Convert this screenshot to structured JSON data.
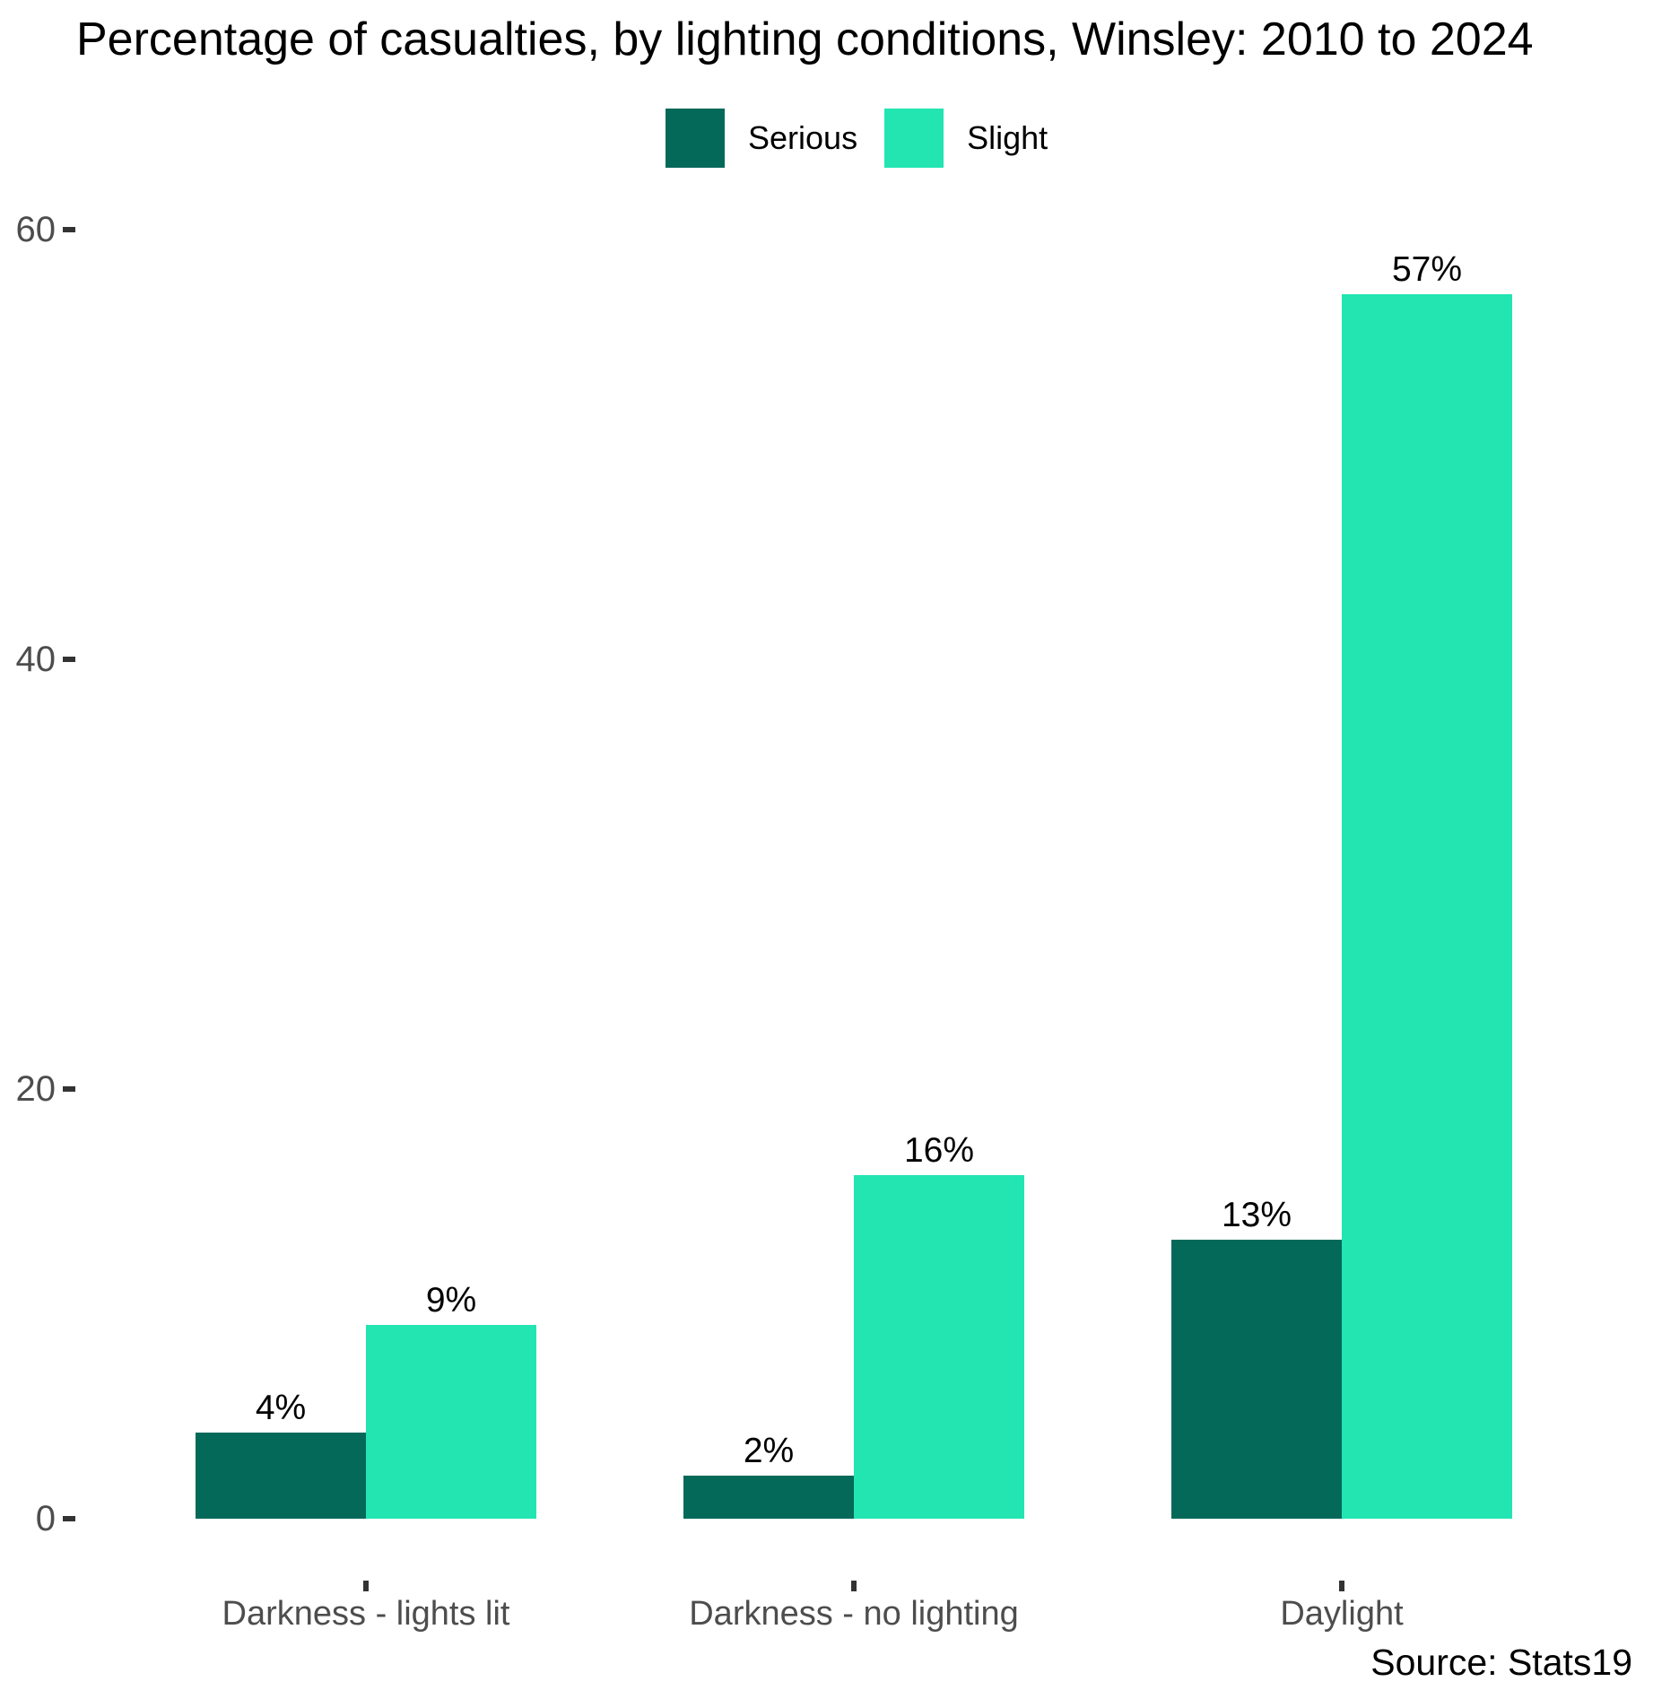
{
  "chart": {
    "title": "Percentage of casualties, by lighting conditions, Winsley: 2010 to 2024",
    "source": "Source: Stats19"
  },
  "chart_data": {
    "type": "bar",
    "title": "Percentage of casualties, by lighting conditions, Winsley: 2010 to 2024",
    "categories": [
      "Darkness - lights lit",
      "Darkness - no lighting",
      "Daylight"
    ],
    "series": [
      {
        "name": "Serious",
        "color": "#05695A",
        "values": [
          4,
          2,
          13
        ],
        "labels": [
          "4%",
          "2%",
          "13%"
        ]
      },
      {
        "name": "Slight",
        "color": "#22E5B2",
        "values": [
          9,
          16,
          57
        ],
        "labels": [
          "9%",
          "16%",
          "57%"
        ]
      }
    ],
    "xlabel": "",
    "ylabel": "",
    "ylim": [
      0,
      60
    ],
    "yticks": [
      0,
      20,
      40,
      60
    ],
    "grid": false,
    "legend_position": "top",
    "unit": "%",
    "axis_text_color": "#4d4d4d",
    "tick_mark_color": "#333333",
    "source": "Source: Stats19"
  }
}
